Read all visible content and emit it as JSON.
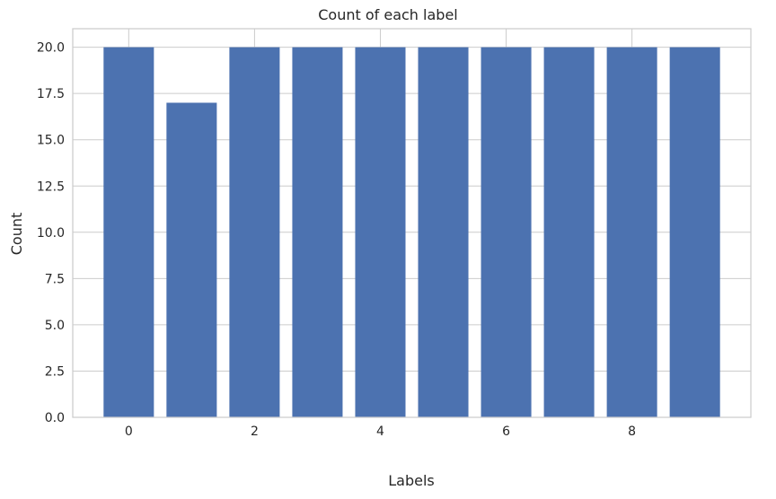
{
  "chart_data": {
    "type": "bar",
    "title": "Count of each label",
    "xlabel": "Labels",
    "ylabel": "Count",
    "categories": [
      0,
      1,
      2,
      3,
      4,
      5,
      6,
      7,
      8,
      9
    ],
    "values": [
      20,
      17,
      20,
      20,
      20,
      20,
      20,
      20,
      20,
      20
    ],
    "xticks": [
      "0",
      "2",
      "4",
      "6",
      "8"
    ],
    "yticks": [
      "0.0",
      "2.5",
      "5.0",
      "7.5",
      "10.0",
      "12.5",
      "15.0",
      "17.5",
      "20.0"
    ],
    "ylim": [
      0,
      21
    ],
    "xlim": [
      -0.89,
      9.89
    ],
    "grid": true,
    "bar_color": "#4c72b0",
    "grid_color": "#cccccc",
    "background": "#ffffff"
  }
}
